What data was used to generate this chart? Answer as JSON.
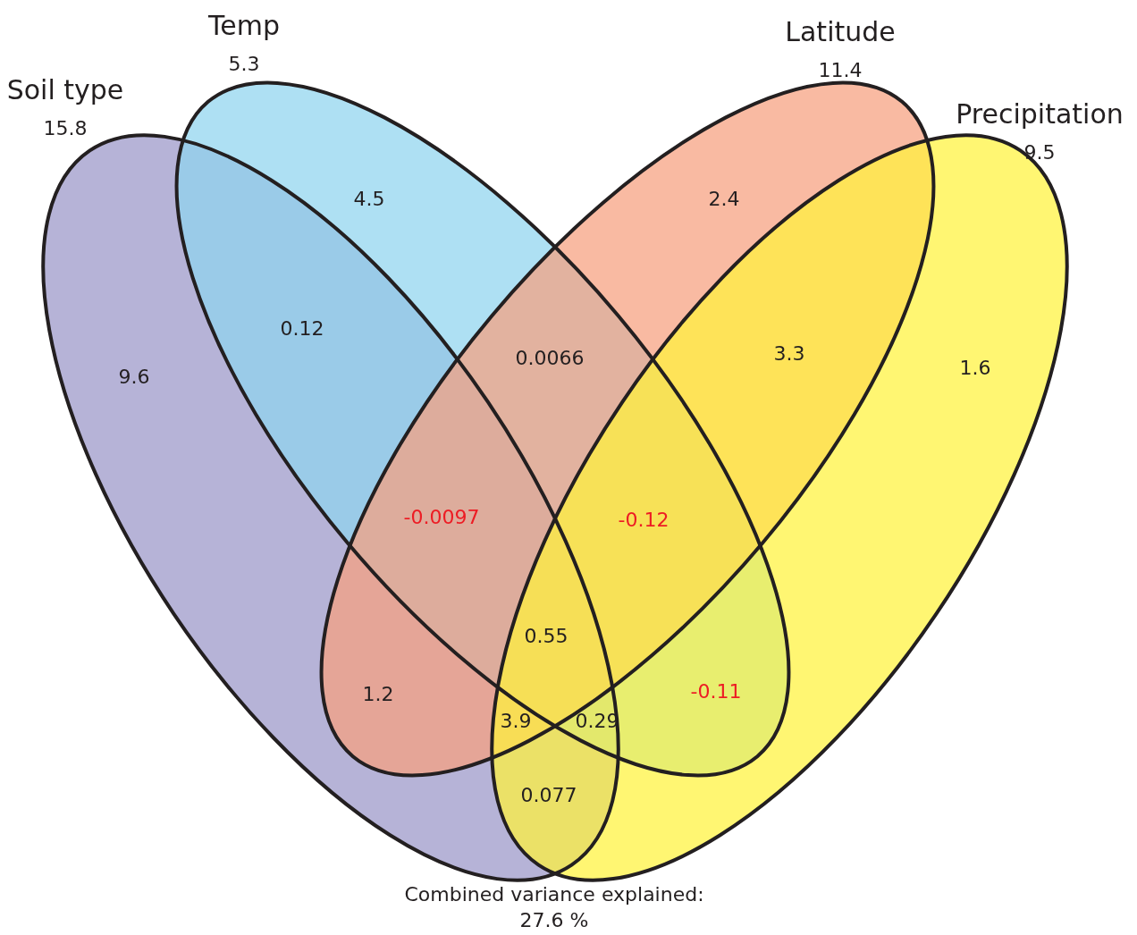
{
  "chart_data": {
    "type": "other",
    "categories": [
      "Soil type",
      "Temp",
      "Latitude",
      "Precipitation"
    ],
    "values": [
      15.8,
      5.3,
      11.4,
      9.5
    ],
    "colors": [
      "#9a96c8",
      "#8fd4ef",
      "#f6a07e",
      "#fff23c"
    ],
    "data_labels": true,
    "annotations": [
      "9.6",
      "4.5",
      "2.4",
      "1.6",
      "0.12",
      "0.0066",
      "3.3",
      "1.2",
      "-0.0097",
      "-0.12",
      "0.55",
      "-0.11",
      "3.9",
      "0.29",
      "0.077",
      "Combined variance explained:\n27.6 %"
    ]
  }
}
